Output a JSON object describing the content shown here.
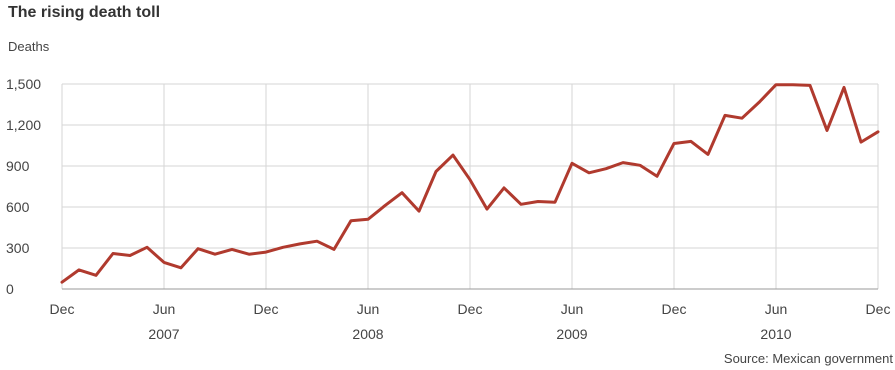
{
  "chart_data": {
    "type": "line",
    "title": "The rising death toll",
    "ylabel": "Deaths",
    "source": "Source: Mexican government",
    "ylim": [
      0,
      1500
    ],
    "yticks": [
      0,
      300,
      600,
      900,
      1200,
      1500
    ],
    "ytick_labels": [
      "0",
      "300",
      "600",
      "900",
      "1,200",
      "1,500"
    ],
    "x_range": [
      "2006-12",
      "2010-12"
    ],
    "xticks": [
      {
        "at": "2006-12",
        "label": "Dec"
      },
      {
        "at": "2007-06",
        "label": "Jun"
      },
      {
        "at": "2007-12",
        "label": "Dec"
      },
      {
        "at": "2008-06",
        "label": "Jun"
      },
      {
        "at": "2008-12",
        "label": "Dec"
      },
      {
        "at": "2009-06",
        "label": "Jun"
      },
      {
        "at": "2009-12",
        "label": "Dec"
      },
      {
        "at": "2010-06",
        "label": "Jun"
      },
      {
        "at": "2010-12",
        "label": "Dec"
      }
    ],
    "year_labels": [
      {
        "at": "2007-06",
        "label": "2007"
      },
      {
        "at": "2008-06",
        "label": "2008"
      },
      {
        "at": "2009-06",
        "label": "2009"
      },
      {
        "at": "2010-06",
        "label": "2010"
      }
    ],
    "grid": true,
    "line_color": "#b03a2e",
    "series": [
      {
        "x": [
          "2006-12",
          "2007-01",
          "2007-02",
          "2007-03",
          "2007-04",
          "2007-05",
          "2007-06",
          "2007-07",
          "2007-08",
          "2007-09",
          "2007-10",
          "2007-11",
          "2007-12",
          "2008-01",
          "2008-02",
          "2008-03",
          "2008-04",
          "2008-05",
          "2008-06",
          "2008-07",
          "2008-08",
          "2008-09",
          "2008-10",
          "2008-11",
          "2008-12",
          "2009-01",
          "2009-02",
          "2009-03",
          "2009-04",
          "2009-05",
          "2009-06",
          "2009-07",
          "2009-08",
          "2009-09",
          "2009-10",
          "2009-11",
          "2009-12",
          "2010-01",
          "2010-02",
          "2010-03",
          "2010-04",
          "2010-05",
          "2010-06",
          "2010-07",
          "2010-08",
          "2010-09",
          "2010-10",
          "2010-11",
          "2010-12"
        ],
        "values": [
          50,
          140,
          100,
          260,
          245,
          305,
          195,
          155,
          295,
          255,
          290,
          255,
          270,
          305,
          330,
          350,
          290,
          500,
          510,
          610,
          705,
          570,
          860,
          980,
          800,
          585,
          740,
          620,
          640,
          635,
          920,
          850,
          880,
          925,
          905,
          825,
          1065,
          1080,
          985,
          1270,
          1250,
          1365,
          1495,
          1495,
          1490,
          1160,
          1475,
          1075,
          1150
        ]
      }
    ]
  }
}
